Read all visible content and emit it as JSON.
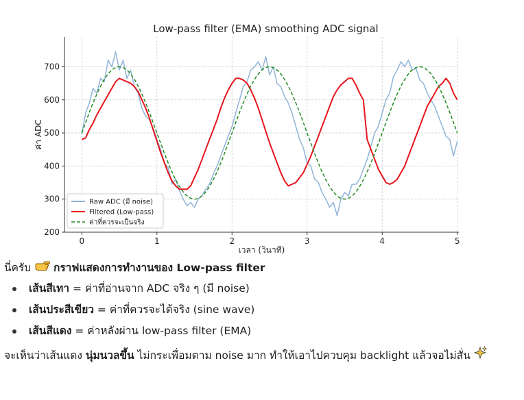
{
  "chart_data": {
    "type": "line",
    "title": "Low-pass filter (EMA) smoothing ADC signal",
    "xlabel": "เวลา (วินาที)",
    "ylabel": "ค่า ADC",
    "xlim": [
      0,
      5
    ],
    "ylim": [
      200,
      790
    ],
    "x_ticks": [
      0,
      1,
      2,
      3,
      4,
      5
    ],
    "y_ticks": [
      200,
      300,
      400,
      500,
      600,
      700
    ],
    "grid": true,
    "legend_position": "bottom-left",
    "series": [
      {
        "name": "Raw ADC (มี noise)",
        "color": "#8fb4d6",
        "style": "solid",
        "x": [
          0,
          0.05,
          0.1,
          0.15,
          0.2,
          0.25,
          0.3,
          0.35,
          0.4,
          0.45,
          0.5,
          0.55,
          0.6,
          0.65,
          0.7,
          0.75,
          0.8,
          0.85,
          0.9,
          0.95,
          1.0,
          1.05,
          1.1,
          1.15,
          1.2,
          1.25,
          1.3,
          1.35,
          1.4,
          1.45,
          1.5,
          1.55,
          1.6,
          1.65,
          1.7,
          1.75,
          1.8,
          1.85,
          1.9,
          1.95,
          2.0,
          2.05,
          2.1,
          2.15,
          2.2,
          2.25,
          2.3,
          2.35,
          2.4,
          2.45,
          2.5,
          2.55,
          2.6,
          2.65,
          2.7,
          2.75,
          2.8,
          2.85,
          2.9,
          2.95,
          3.0,
          3.05,
          3.1,
          3.15,
          3.2,
          3.25,
          3.3,
          3.35,
          3.4,
          3.45,
          3.5,
          3.55,
          3.6,
          3.65,
          3.7,
          3.75,
          3.8,
          3.85,
          3.9,
          3.95,
          4.0,
          4.05,
          4.1,
          4.15,
          4.2,
          4.25,
          4.3,
          4.35,
          4.4,
          4.45,
          4.5,
          4.55,
          4.6,
          4.65,
          4.7,
          4.75,
          4.8,
          4.85,
          4.9,
          4.95,
          5.0
        ],
        "values": [
          495,
          560,
          590,
          635,
          620,
          665,
          655,
          720,
          700,
          745,
          690,
          720,
          665,
          690,
          640,
          620,
          575,
          550,
          540,
          515,
          480,
          450,
          410,
          395,
          345,
          360,
          325,
          300,
          280,
          290,
          275,
          300,
          310,
          330,
          345,
          375,
          400,
          430,
          460,
          490,
          520,
          560,
          600,
          640,
          655,
          690,
          700,
          715,
          690,
          730,
          675,
          700,
          650,
          640,
          610,
          590,
          560,
          520,
          480,
          455,
          410,
          400,
          360,
          350,
          320,
          300,
          275,
          290,
          250,
          300,
          320,
          310,
          345,
          345,
          360,
          390,
          420,
          460,
          500,
          520,
          560,
          600,
          620,
          670,
          690,
          715,
          700,
          720,
          690,
          695,
          660,
          650,
          620,
          600,
          580,
          550,
          520,
          490,
          480,
          430,
          475
        ]
      },
      {
        "name": "Filtered (Low-pass)",
        "color": "#e8141c",
        "style": "solid",
        "x": [
          0,
          0.05,
          0.1,
          0.15,
          0.2,
          0.25,
          0.3,
          0.35,
          0.4,
          0.45,
          0.5,
          0.55,
          0.6,
          0.65,
          0.7,
          0.75,
          0.8,
          0.85,
          0.9,
          0.95,
          1.0,
          1.05,
          1.1,
          1.15,
          1.2,
          1.25,
          1.3,
          1.35,
          1.4,
          1.45,
          1.5,
          1.55,
          1.6,
          1.65,
          1.7,
          1.75,
          1.8,
          1.85,
          1.9,
          1.95,
          2.0,
          2.05,
          2.1,
          2.15,
          2.2,
          2.25,
          2.3,
          2.35,
          2.4,
          2.45,
          2.5,
          2.55,
          2.6,
          2.65,
          2.7,
          2.75,
          2.8,
          2.85,
          2.9,
          2.95,
          3.0,
          3.05,
          3.1,
          3.15,
          3.2,
          3.25,
          3.3,
          3.35,
          3.4,
          3.45,
          3.5,
          3.55,
          3.6,
          3.65,
          3.7,
          3.75,
          3.8,
          3.85,
          3.9,
          3.95,
          4.0,
          4.05,
          4.1,
          4.15,
          4.2,
          4.25,
          4.3,
          4.35,
          4.4,
          4.45,
          4.5,
          4.55,
          4.6,
          4.65,
          4.7,
          4.75,
          4.8,
          4.85,
          4.9,
          4.95,
          5.0
        ],
        "values": [
          480,
          485,
          510,
          530,
          555,
          575,
          595,
          615,
          635,
          655,
          665,
          660,
          655,
          650,
          640,
          625,
          600,
          575,
          545,
          510,
          475,
          440,
          410,
          380,
          355,
          340,
          330,
          330,
          330,
          340,
          365,
          390,
          420,
          450,
          480,
          510,
          540,
          575,
          605,
          630,
          650,
          665,
          665,
          660,
          650,
          630,
          605,
          575,
          540,
          505,
          470,
          440,
          410,
          380,
          355,
          340,
          345,
          350,
          365,
          380,
          405,
          430,
          460,
          490,
          520,
          550,
          580,
          610,
          630,
          645,
          655,
          665,
          665,
          645,
          620,
          600,
          480,
          450,
          420,
          390,
          370,
          350,
          345,
          350,
          360,
          380,
          400,
          430,
          460,
          490,
          520,
          550,
          580,
          600,
          620,
          640,
          650,
          665,
          650,
          620,
          600
        ]
      },
      {
        "name": "ค่าที่ควรจะเป็นจริง",
        "color": "#228b22",
        "style": "dashed",
        "x": [
          0,
          5
        ],
        "values": [
          500,
          500
        ]
      }
    ]
  },
  "text": {
    "intro_prefix": "นี่ครับ",
    "intro_suffix": "กราฟแสดงการทำงานของ Low-pass filter",
    "bullets": [
      {
        "bold": "เส้นสีเทา",
        "rest": " = ค่าที่อ่านจาก ADC จริง ๆ (มี noise)"
      },
      {
        "bold": "เส้นประสีเขียว",
        "rest": " = ค่าที่ควรจะได้จริง (sine wave)"
      },
      {
        "bold": "เส้นสีแดง",
        "rest": " = ค่าหลังผ่าน low-pass filter (EMA)"
      }
    ],
    "conclusion_prefix": "จะเห็นว่าเส้นแดง ",
    "conclusion_bold": "นุ่มนวลขึ้น",
    "conclusion_suffix": " ไม่กระเพื่อมตาม noise มาก ทำให้เอาไปควบคุม backlight แล้วจอไม่สั่น"
  },
  "icons": [
    "pointing-hand-icon",
    "sparkles-icon"
  ]
}
